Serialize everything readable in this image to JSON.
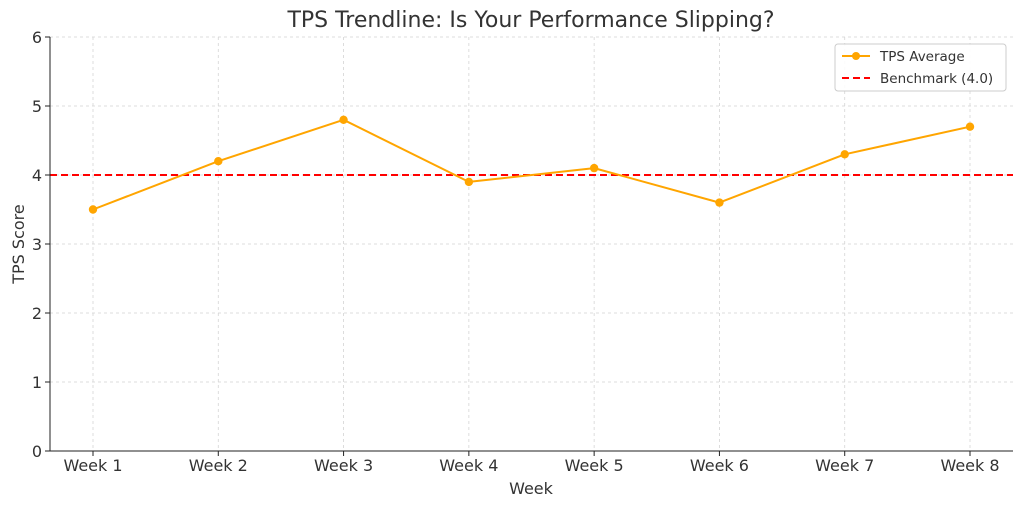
{
  "chart_data": {
    "type": "line",
    "title": "TPS Trendline: Is Your Performance Slipping?",
    "xlabel": "Week",
    "ylabel": "TPS Score",
    "categories": [
      "Week 1",
      "Week 2",
      "Week 3",
      "Week 4",
      "Week 5",
      "Week 6",
      "Week 7",
      "Week 8"
    ],
    "ylim": [
      0,
      6
    ],
    "yticks": [
      0,
      1,
      2,
      3,
      4,
      5,
      6
    ],
    "grid": true,
    "legend_position": "top-right",
    "series": [
      {
        "name": "TPS Average",
        "values": [
          3.5,
          4.2,
          4.8,
          3.9,
          4.1,
          3.6,
          4.3,
          4.7
        ],
        "color": "#FFA500",
        "style": "solid",
        "marker": "circle"
      }
    ],
    "reference_lines": [
      {
        "name": "Benchmark (4.0)",
        "value": 4.0,
        "color": "#FF0000",
        "style": "dashed"
      }
    ]
  }
}
